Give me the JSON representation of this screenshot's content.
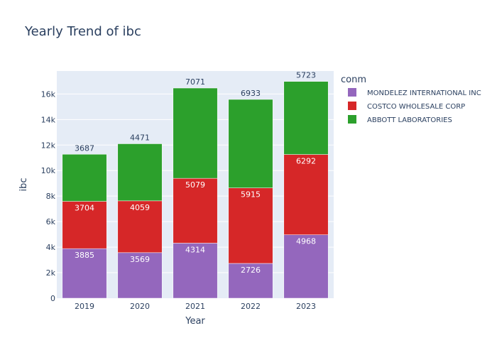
{
  "chart_data": {
    "type": "bar",
    "stacked": true,
    "title": "Yearly Trend of ibc",
    "xlabel": "Year",
    "ylabel": "ibc",
    "categories": [
      "2019",
      "2020",
      "2021",
      "2022",
      "2023"
    ],
    "ylim": [
      0,
      17800
    ],
    "yticks": [
      0,
      2000,
      4000,
      6000,
      8000,
      10000,
      12000,
      14000,
      16000
    ],
    "ytick_labels": [
      "0",
      "2k",
      "4k",
      "6k",
      "8k",
      "10k",
      "12k",
      "14k",
      "16k"
    ],
    "legend_title": "conm",
    "legend_position": "right",
    "grid": true,
    "series": [
      {
        "name": "MONDELEZ INTERNATIONAL INC",
        "color": "#9467bd",
        "values": [
          3885,
          3569,
          4314,
          2726,
          4968
        ]
      },
      {
        "name": "COSTCO WHOLESALE CORP",
        "color": "#d62728",
        "values": [
          3704,
          4059,
          5079,
          5915,
          6292
        ]
      },
      {
        "name": "ABBOTT LABORATORIES",
        "color": "#2ca02c",
        "values": [
          3687,
          4471,
          7071,
          6933,
          5723
        ]
      }
    ]
  }
}
